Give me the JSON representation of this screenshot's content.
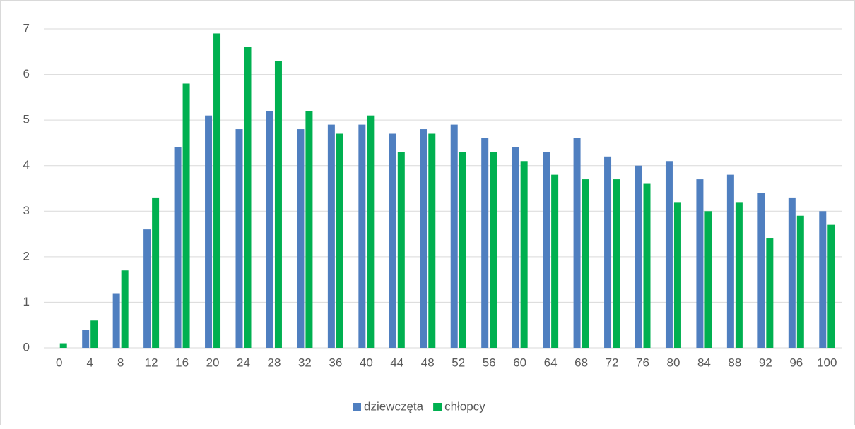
{
  "chart_data": {
    "type": "bar",
    "categories": [
      "0",
      "4",
      "8",
      "12",
      "16",
      "20",
      "24",
      "28",
      "32",
      "36",
      "40",
      "44",
      "48",
      "52",
      "56",
      "60",
      "64",
      "68",
      "72",
      "76",
      "80",
      "84",
      "88",
      "92",
      "96",
      "100"
    ],
    "series": [
      {
        "name": "dziewczęta",
        "color": "#4f7fc0",
        "values": [
          0,
          0.4,
          1.2,
          2.6,
          4.4,
          5.1,
          4.8,
          5.2,
          4.8,
          4.9,
          4.9,
          4.7,
          4.8,
          4.9,
          4.6,
          4.4,
          4.3,
          4.6,
          4.2,
          4.0,
          4.1,
          3.7,
          3.8,
          3.4,
          3.3,
          3.0
        ]
      },
      {
        "name": "chłopcy",
        "color": "#00b050",
        "values": [
          0.1,
          0.6,
          1.7,
          3.3,
          5.8,
          6.9,
          6.6,
          6.3,
          5.2,
          4.7,
          5.1,
          4.3,
          4.7,
          4.3,
          4.3,
          4.1,
          3.8,
          3.7,
          3.7,
          3.6,
          3.2,
          3.0,
          3.2,
          2.4,
          2.9,
          2.7
        ]
      }
    ],
    "ylim": [
      0,
      7
    ],
    "yticks": [
      0,
      1,
      2,
      3,
      4,
      5,
      6,
      7
    ],
    "grid": true,
    "legend": "bottom"
  }
}
